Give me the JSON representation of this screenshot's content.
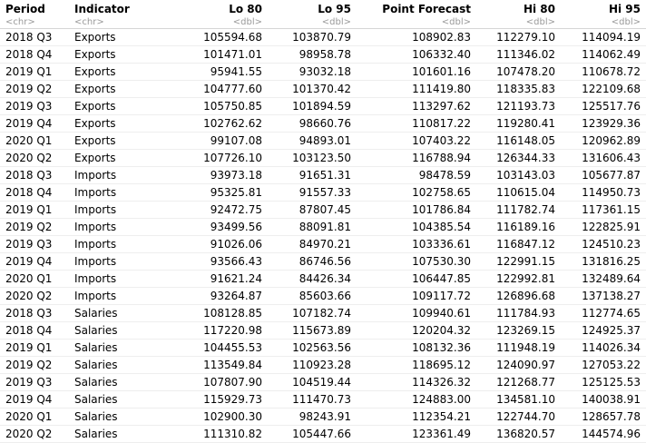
{
  "table": {
    "columns": [
      {
        "name": "Period",
        "type": "<chr>",
        "align": "left"
      },
      {
        "name": "Indicator",
        "type": "<chr>",
        "align": "left"
      },
      {
        "name": "Lo 80",
        "type": "<dbl>",
        "align": "right"
      },
      {
        "name": "Lo 95",
        "type": "<dbl>",
        "align": "right"
      },
      {
        "name": "Point Forecast",
        "type": "<dbl>",
        "align": "right"
      },
      {
        "name": "Hi 80",
        "type": "<dbl>",
        "align": "right"
      },
      {
        "name": "Hi 95",
        "type": "<dbl>",
        "align": "right"
      }
    ],
    "rows": [
      [
        "2018 Q3",
        "Exports",
        "105594.68",
        "103870.79",
        "108902.83",
        "112279.10",
        "114094.19"
      ],
      [
        "2018 Q4",
        "Exports",
        "101471.01",
        "98958.78",
        "106332.40",
        "111346.02",
        "114062.49"
      ],
      [
        "2019 Q1",
        "Exports",
        "95941.55",
        "93032.18",
        "101601.16",
        "107478.20",
        "110678.72"
      ],
      [
        "2019 Q2",
        "Exports",
        "104777.60",
        "101370.42",
        "111419.80",
        "118335.83",
        "122109.68"
      ],
      [
        "2019 Q3",
        "Exports",
        "105750.85",
        "101894.59",
        "113297.62",
        "121193.73",
        "125517.76"
      ],
      [
        "2019 Q4",
        "Exports",
        "102762.62",
        "98660.76",
        "110817.22",
        "119280.41",
        "123929.36"
      ],
      [
        "2020 Q1",
        "Exports",
        "99107.08",
        "94893.01",
        "107403.22",
        "116148.05",
        "120962.89"
      ],
      [
        "2020 Q2",
        "Exports",
        "107726.10",
        "103123.50",
        "116788.94",
        "126344.33",
        "131606.43"
      ],
      [
        "2018 Q3",
        "Imports",
        "93973.18",
        "91651.31",
        "98478.59",
        "103143.03",
        "105677.87"
      ],
      [
        "2018 Q4",
        "Imports",
        "95325.81",
        "91557.33",
        "102758.65",
        "110615.04",
        "114950.73"
      ],
      [
        "2019 Q1",
        "Imports",
        "92472.75",
        "87807.45",
        "101786.84",
        "111782.74",
        "117361.15"
      ],
      [
        "2019 Q2",
        "Imports",
        "93499.56",
        "88091.81",
        "104385.54",
        "116189.16",
        "122825.91"
      ],
      [
        "2019 Q3",
        "Imports",
        "91026.06",
        "84970.21",
        "103336.61",
        "116847.12",
        "124510.23"
      ],
      [
        "2019 Q4",
        "Imports",
        "93566.43",
        "86746.56",
        "107530.30",
        "122991.15",
        "131816.25"
      ],
      [
        "2020 Q1",
        "Imports",
        "91621.24",
        "84426.34",
        "106447.85",
        "122992.81",
        "132489.64"
      ],
      [
        "2020 Q2",
        "Imports",
        "93264.87",
        "85603.66",
        "109117.72",
        "126896.68",
        "137138.27"
      ],
      [
        "2018 Q3",
        "Salaries",
        "108128.85",
        "107182.74",
        "109940.61",
        "111784.93",
        "112774.65"
      ],
      [
        "2018 Q4",
        "Salaries",
        "117220.98",
        "115673.89",
        "120204.32",
        "123269.15",
        "124925.37"
      ],
      [
        "2019 Q1",
        "Salaries",
        "104455.53",
        "102563.56",
        "108132.36",
        "111948.19",
        "114026.34"
      ],
      [
        "2019 Q2",
        "Salaries",
        "113549.84",
        "110923.28",
        "118695.12",
        "124090.97",
        "127053.22"
      ],
      [
        "2019 Q3",
        "Salaries",
        "107807.90",
        "104519.44",
        "114326.32",
        "121268.77",
        "125125.53"
      ],
      [
        "2019 Q4",
        "Salaries",
        "115929.73",
        "111470.73",
        "124883.00",
        "134581.10",
        "140038.91"
      ],
      [
        "2020 Q1",
        "Salaries",
        "102900.30",
        "98243.91",
        "112354.21",
        "122744.70",
        "128657.78"
      ],
      [
        "2020 Q2",
        "Salaries",
        "111310.82",
        "105447.66",
        "123361.49",
        "136820.57",
        "144574.96"
      ]
    ]
  }
}
